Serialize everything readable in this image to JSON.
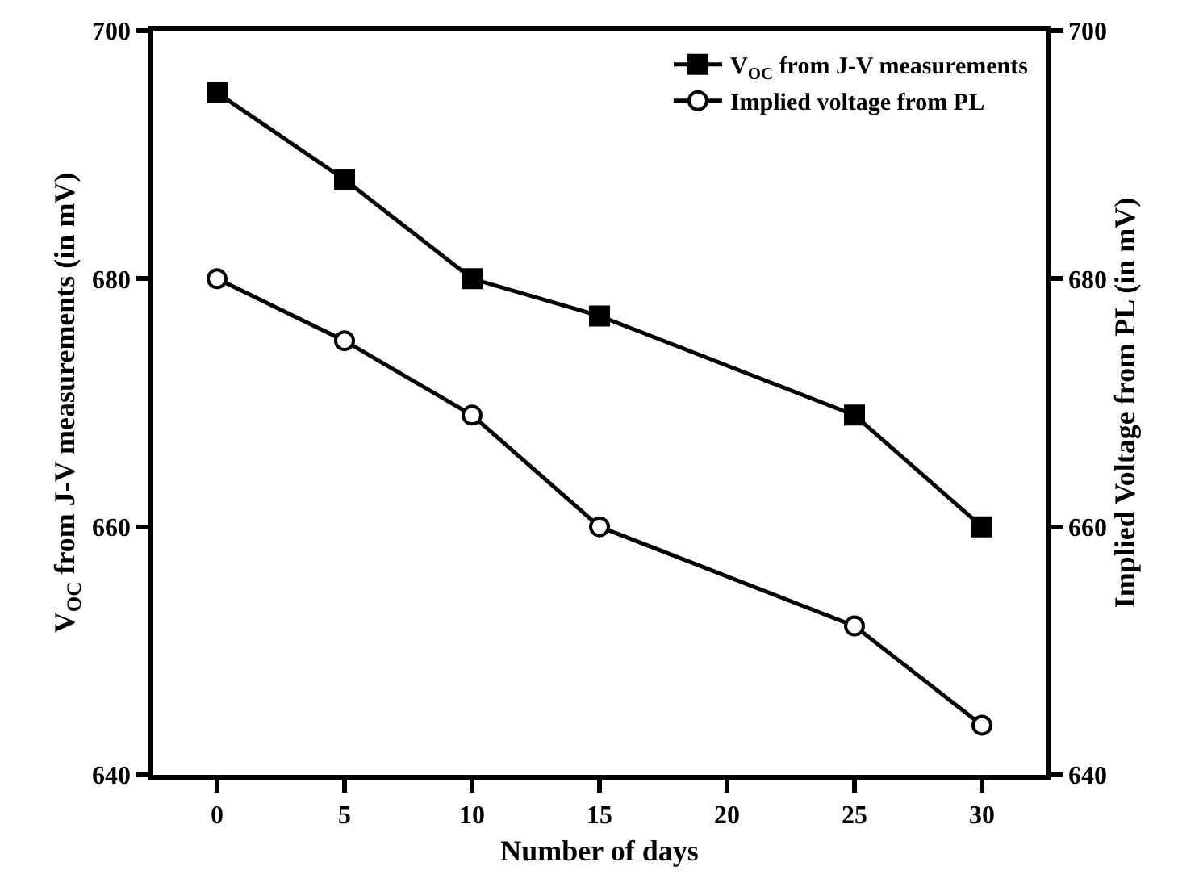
{
  "chart_data": {
    "type": "line",
    "xlabel": "Number of days",
    "ylabel": "V$_{OC}$ from J-V measurements (in mV)",
    "y2label": "Implied Voltage from PL (in mV)",
    "x": [
      0,
      5,
      10,
      15,
      25,
      30
    ],
    "series": [
      {
        "name": "V$_{OC}$ from J-V measurements",
        "color": "#000000",
        "marker": "square",
        "values": [
          695,
          688,
          680,
          677,
          669,
          660
        ]
      },
      {
        "name": "Implied voltage from PL",
        "color": "#000000",
        "marker": "circle",
        "axis": "y2",
        "values": [
          680,
          675,
          669,
          660,
          652,
          644
        ]
      }
    ],
    "xlim": [
      -2.5,
      32.5
    ],
    "xticks": [
      0,
      5,
      10,
      15,
      20,
      25,
      30
    ],
    "ylim": [
      640,
      700
    ],
    "yticks": [
      640,
      660,
      680,
      700
    ],
    "y2lim": [
      640,
      700
    ],
    "y2ticks": [
      640,
      660,
      680,
      700
    ],
    "legend": "top right",
    "line_style": "solid"
  }
}
